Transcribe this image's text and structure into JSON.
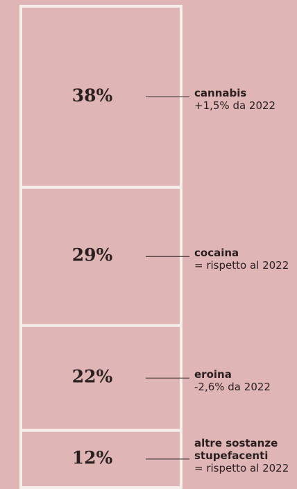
{
  "chart_data": {
    "type": "stacked_column",
    "categories": [
      "cannabis",
      "cocaina",
      "eroina",
      "altre sostanze stupefacenti"
    ],
    "notes": [
      "+1,5% da 2022",
      "= rispetto al 2022",
      "-2,6% da 2022",
      "= rispetto al 2022"
    ],
    "values": [
      38,
      29,
      22,
      12
    ],
    "value_labels": [
      "38%",
      "29%",
      "22%",
      "12%"
    ],
    "color": "#dfb6b5"
  }
}
